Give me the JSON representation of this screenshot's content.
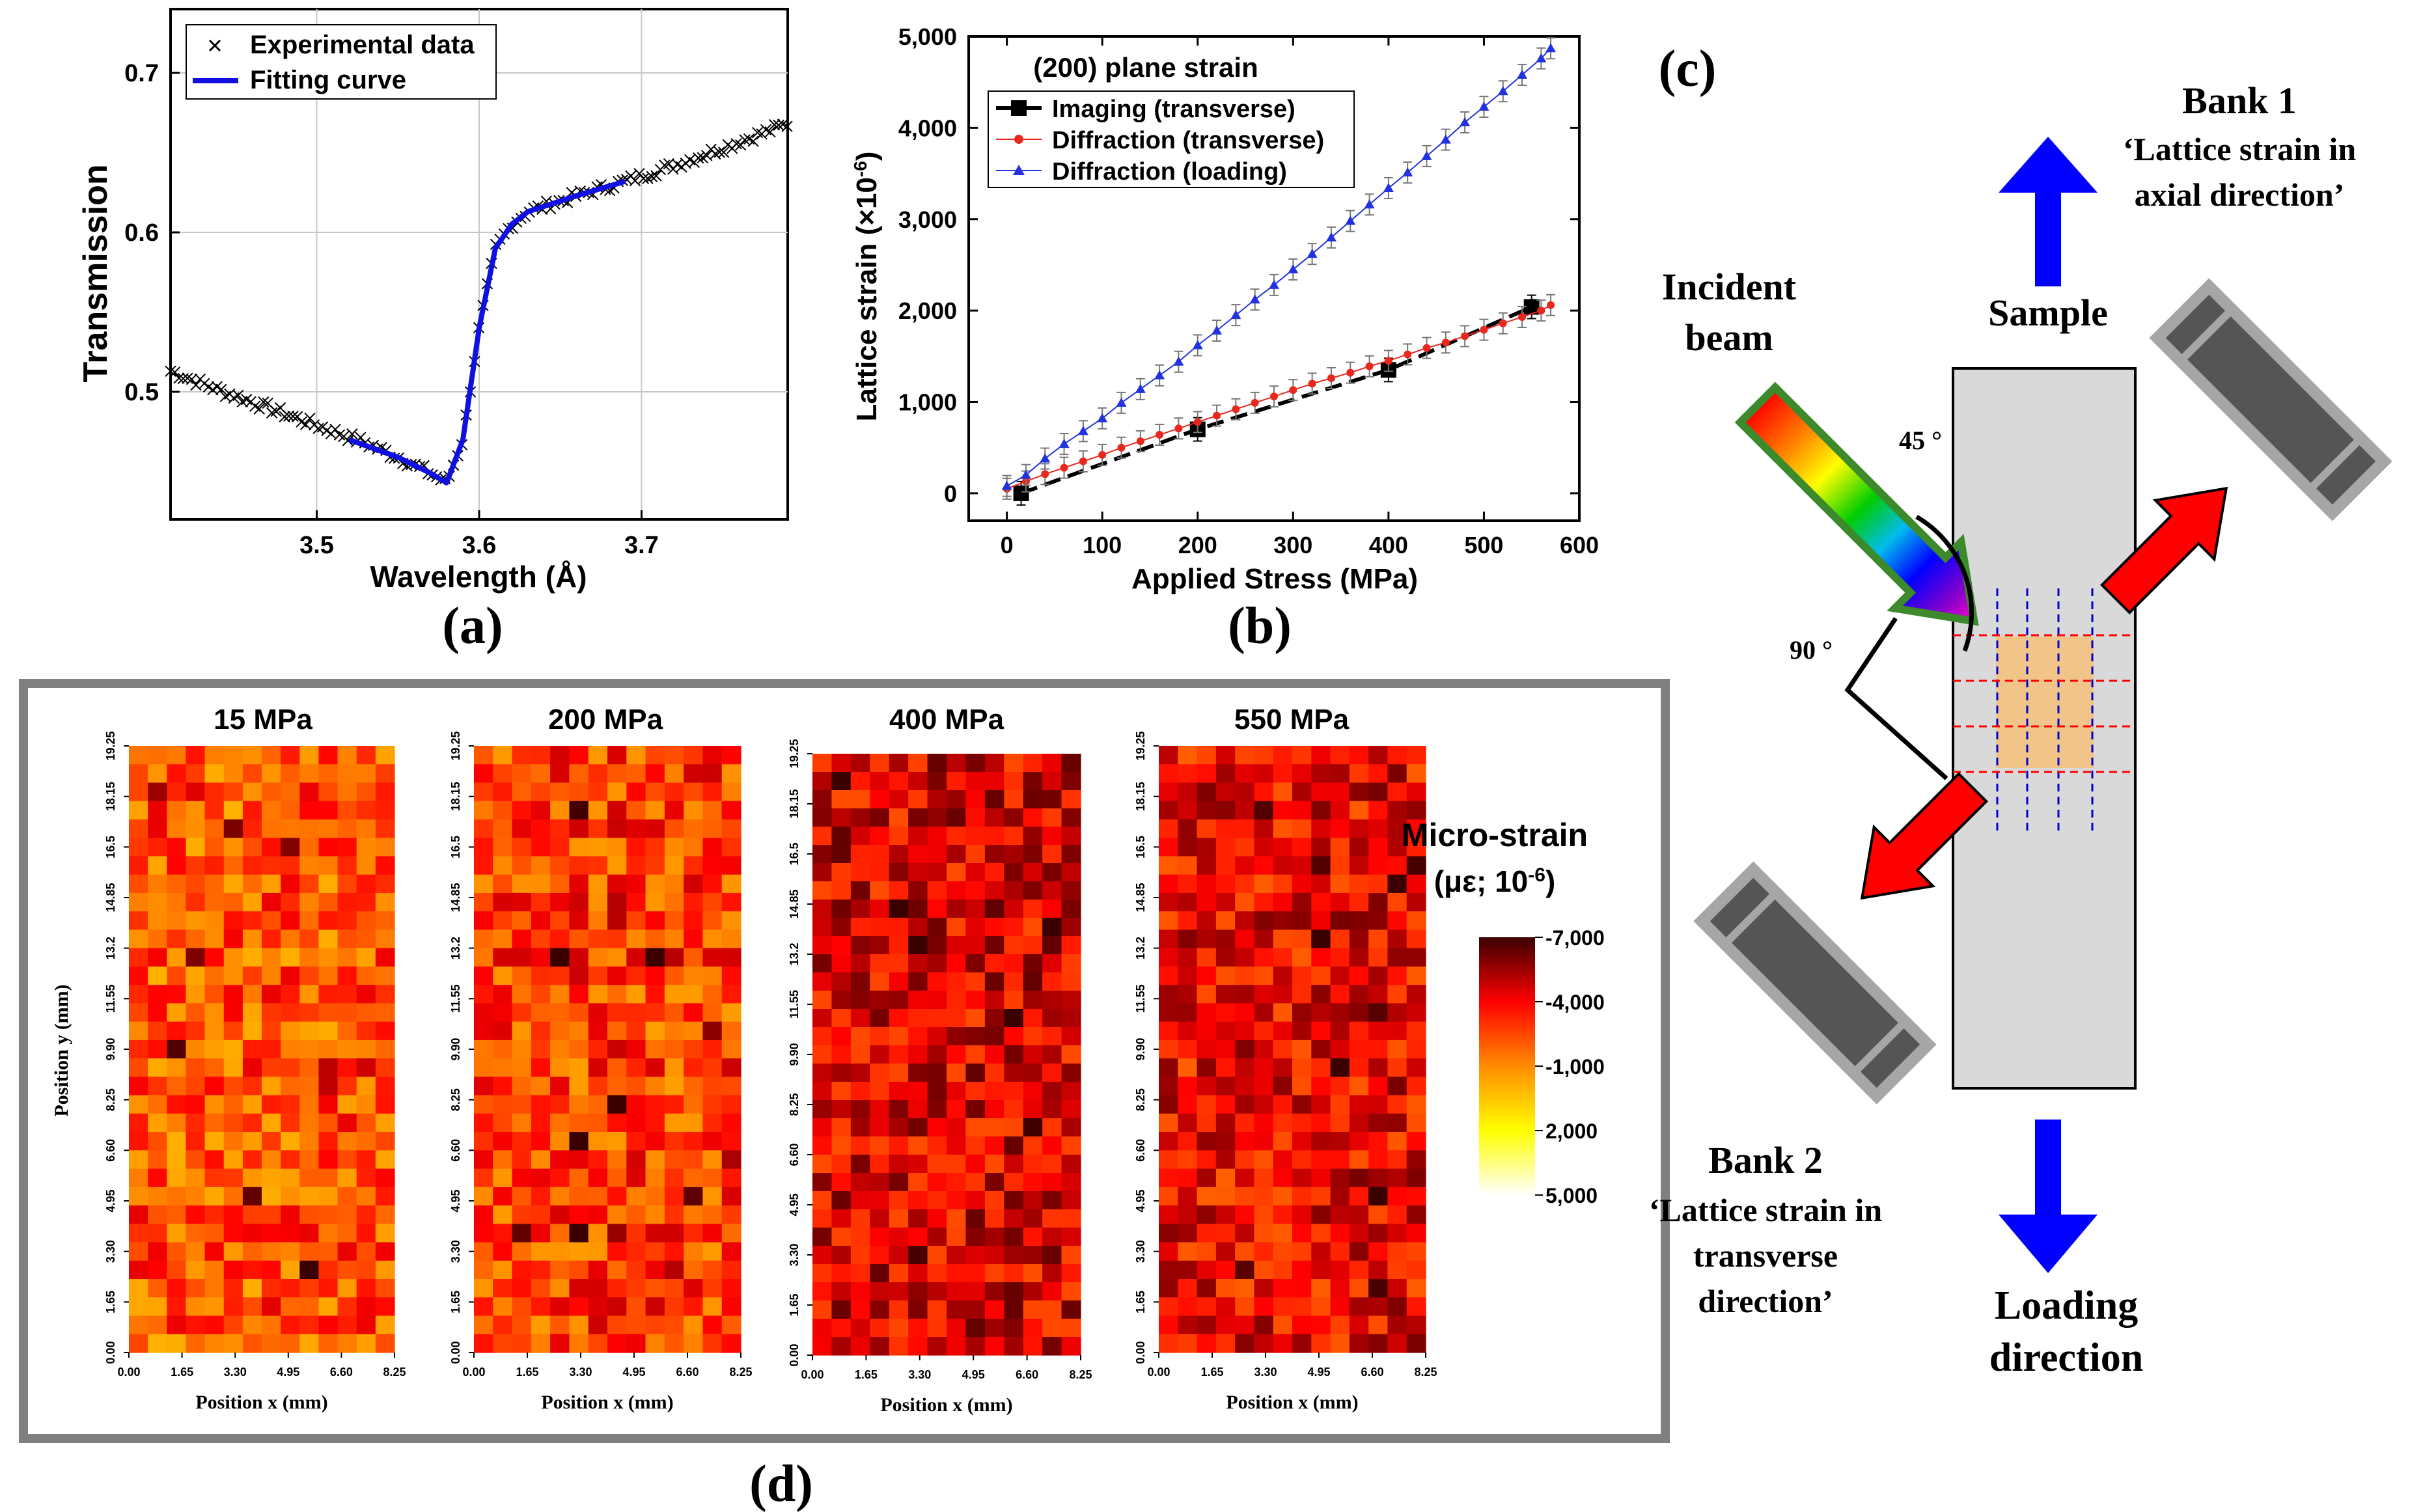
{
  "chart_data": [
    {
      "panel": "(a)",
      "type": "line",
      "xlabel": "Wavelength (Å)",
      "ylabel": "Transmission",
      "xlim": [
        3.41,
        3.79
      ],
      "ylim": [
        0.42,
        0.74
      ],
      "xticks": [
        3.5,
        3.6,
        3.7
      ],
      "xtick_labels": [
        "3.5",
        "3.6",
        "3.7"
      ],
      "yticks": [
        0.5,
        0.6,
        0.7
      ],
      "ytick_labels": [
        "0.5",
        "0.6",
        "0.7"
      ],
      "grid": true,
      "legend_position": "top-left",
      "series": [
        {
          "name": "Experimental data",
          "style": "x-markers",
          "x": [
            3.41,
            3.44,
            3.47,
            3.5,
            3.53,
            3.55,
            3.57,
            3.58,
            3.59,
            3.6,
            3.61,
            3.62,
            3.63,
            3.66,
            3.69,
            3.72,
            3.75,
            3.79
          ],
          "y": [
            0.513,
            0.501,
            0.49,
            0.479,
            0.468,
            0.459,
            0.449,
            0.443,
            0.47,
            0.54,
            0.59,
            0.605,
            0.613,
            0.623,
            0.632,
            0.642,
            0.653,
            0.668
          ]
        },
        {
          "name": "Fitting curve",
          "style": "line",
          "x": [
            3.52,
            3.55,
            3.57,
            3.58,
            3.59,
            3.6,
            3.61,
            3.62,
            3.63,
            3.66,
            3.69
          ],
          "y": [
            0.47,
            0.459,
            0.449,
            0.443,
            0.47,
            0.54,
            0.59,
            0.605,
            0.613,
            0.623,
            0.632
          ]
        }
      ]
    },
    {
      "panel": "(b)",
      "type": "line",
      "title": "(200) plane strain",
      "xlabel": "Applied Stress (MPa)",
      "ylabel_main": "Lattice strain (×10",
      "ylabel_exp": "-6",
      "ylabel_close": ")",
      "xlim": [
        -40,
        600
      ],
      "ylim": [
        -300,
        5000
      ],
      "xticks": [
        0,
        100,
        200,
        300,
        400,
        500,
        600
      ],
      "xtick_labels": [
        "0",
        "100",
        "200",
        "300",
        "400",
        "500",
        "600"
      ],
      "yticks": [
        0,
        1000,
        2000,
        3000,
        4000,
        5000
      ],
      "ytick_labels": [
        "0",
        "1,000",
        "2,000",
        "3,000",
        "4,000",
        "5,000"
      ],
      "legend_position": "top-left",
      "series": [
        {
          "name": "Imaging (transverse)",
          "color": "#000000",
          "style": "dash-square",
          "x": [
            15,
            200,
            400,
            550
          ],
          "y": [
            0,
            700,
            1350,
            2040
          ]
        },
        {
          "name": "Diffraction (transverse)",
          "color": "#e8281e",
          "style": "circle",
          "x": [
            0,
            20,
            40,
            60,
            80,
            100,
            120,
            140,
            160,
            180,
            200,
            220,
            240,
            260,
            280,
            300,
            320,
            340,
            360,
            380,
            400,
            420,
            440,
            460,
            480,
            500,
            520,
            540,
            560,
            570
          ],
          "y": [
            50,
            130,
            210,
            280,
            350,
            420,
            500,
            570,
            640,
            710,
            780,
            850,
            920,
            990,
            1060,
            1130,
            1200,
            1260,
            1320,
            1390,
            1450,
            1520,
            1590,
            1650,
            1720,
            1790,
            1860,
            1930,
            2000,
            2060
          ]
        },
        {
          "name": "Diffraction (loading)",
          "color": "#2233dd",
          "style": "triangle",
          "x": [
            0,
            20,
            40,
            60,
            80,
            100,
            120,
            140,
            160,
            180,
            200,
            220,
            240,
            260,
            280,
            300,
            320,
            340,
            360,
            380,
            400,
            420,
            440,
            460,
            480,
            500,
            520,
            540,
            560,
            570
          ],
          "y": [
            80,
            200,
            380,
            540,
            680,
            820,
            990,
            1140,
            1290,
            1440,
            1620,
            1780,
            1950,
            2120,
            2280,
            2450,
            2620,
            2800,
            2980,
            3160,
            3340,
            3510,
            3690,
            3870,
            4060,
            4230,
            4400,
            4580,
            4760,
            4870
          ]
        }
      ]
    },
    {
      "panel": "(d)",
      "type": "heatmap",
      "maps": [
        {
          "title": "15 MPa"
        },
        {
          "title": "200 MPa"
        },
        {
          "title": "400 MPa"
        },
        {
          "title": "550 MPa"
        }
      ],
      "grid_cols": 14,
      "grid_rows": 33,
      "xlabel": "Position x (mm)",
      "ylabel": "Position y (mm)",
      "xtick_labels": [
        "0.00",
        "1.65",
        "3.30",
        "4.95",
        "6.60",
        "8.25"
      ],
      "ytick_labels": [
        "0.00",
        "1.65",
        "3.30",
        "4.95",
        "6.60",
        "8.25",
        "9.90",
        "11.55",
        "13.2",
        "14.85",
        "16.5",
        "18.15",
        "19.25"
      ],
      "colorbar_title_1": "Micro-strain",
      "colorbar_title_2_main": "(με; 10",
      "colorbar_title_2_exp": "-6",
      "colorbar_title_2_close": ")",
      "colorbar_tick_labels": [
        "-7,000",
        "-4,000",
        "-1,000",
        "2,000",
        "5,000"
      ],
      "colorbar_stops": [
        "#3a0000",
        "#ff0000",
        "#ff8c00",
        "#ffff00",
        "#ffffff"
      ]
    }
  ],
  "panel_labels": {
    "a": "(a)",
    "b": "(b)",
    "c": "(c)",
    "d": "(d)"
  },
  "legend_a": {
    "item1": "Experimental data",
    "item2": "Fitting curve"
  },
  "legend_b": {
    "item1": "Imaging (transverse)",
    "item2": "Diffraction (transverse)",
    "item3": "Diffraction (loading)"
  },
  "schematic": {
    "incident_beam_1": "Incident",
    "incident_beam_2": "beam",
    "sample": "Sample",
    "bank1_title": "Bank 1",
    "bank1_line1": "‘Lattice strain in",
    "bank1_line2": "axial direction’",
    "bank2_title": "Bank 2",
    "bank2_line1": "‘Lattice strain in",
    "bank2_line2": "transverse",
    "bank2_line3": "direction’",
    "loading_1": "Loading",
    "loading_2": "direction",
    "angle_45": "45 °",
    "angle_90": "90 °"
  },
  "colors": {
    "blue_arrow": "#0000ff",
    "red_arrow": "#ff0000",
    "beam_outline": "#3c8a2c",
    "sample_fill": "#d9d9d9",
    "detector": "#555555"
  }
}
